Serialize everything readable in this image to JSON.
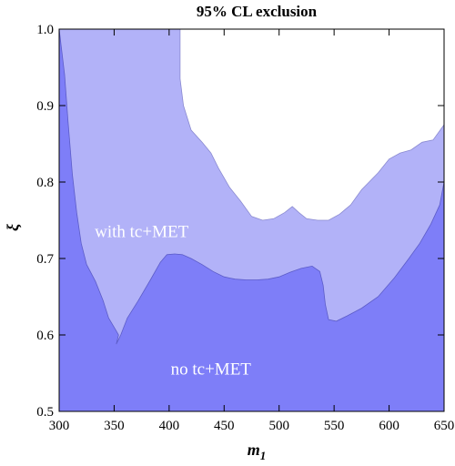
{
  "chart_data": {
    "type": "area",
    "title": "95% CL exclusion",
    "xlabel": "m",
    "xlabel_sub": "1",
    "ylabel": "ξ",
    "xlim": [
      300,
      650
    ],
    "ylim": [
      0.5,
      1.0
    ],
    "x_ticks": [
      300,
      350,
      400,
      450,
      500,
      550,
      600,
      650
    ],
    "y_ticks": [
      0.5,
      0.6,
      0.7,
      0.8,
      0.9,
      1.0
    ],
    "grid": false,
    "series": [
      {
        "name": "with tc+MET",
        "color": "#b2b2f8",
        "boundary": [
          [
            410,
            1.0
          ],
          [
            410,
            0.935
          ],
          [
            413,
            0.9
          ],
          [
            420,
            0.868
          ],
          [
            430,
            0.852
          ],
          [
            438,
            0.838
          ],
          [
            445,
            0.818
          ],
          [
            455,
            0.793
          ],
          [
            465,
            0.775
          ],
          [
            475,
            0.755
          ],
          [
            485,
            0.75
          ],
          [
            495,
            0.752
          ],
          [
            505,
            0.76
          ],
          [
            512,
            0.768
          ],
          [
            518,
            0.76
          ],
          [
            525,
            0.752
          ],
          [
            535,
            0.75
          ],
          [
            545,
            0.75
          ],
          [
            555,
            0.758
          ],
          [
            565,
            0.77
          ],
          [
            575,
            0.79
          ],
          [
            590,
            0.812
          ],
          [
            600,
            0.83
          ],
          [
            610,
            0.838
          ],
          [
            620,
            0.842
          ],
          [
            630,
            0.852
          ],
          [
            640,
            0.855
          ],
          [
            650,
            0.875
          ]
        ]
      },
      {
        "name": "no tc+MET",
        "color": "#7e7ef8",
        "boundary": [
          [
            300,
            1.0
          ],
          [
            305,
            0.94
          ],
          [
            308,
            0.88
          ],
          [
            312,
            0.81
          ],
          [
            316,
            0.76
          ],
          [
            320,
            0.72
          ],
          [
            325,
            0.692
          ],
          [
            333,
            0.67
          ],
          [
            340,
            0.645
          ],
          [
            345,
            0.622
          ],
          [
            350,
            0.61
          ],
          [
            354,
            0.6
          ],
          [
            352,
            0.588
          ],
          [
            356,
            0.6
          ],
          [
            362,
            0.622
          ],
          [
            372,
            0.645
          ],
          [
            383,
            0.672
          ],
          [
            392,
            0.695
          ],
          [
            398,
            0.705
          ],
          [
            405,
            0.706
          ],
          [
            412,
            0.705
          ],
          [
            420,
            0.7
          ],
          [
            430,
            0.692
          ],
          [
            440,
            0.683
          ],
          [
            450,
            0.676
          ],
          [
            460,
            0.673
          ],
          [
            470,
            0.672
          ],
          [
            480,
            0.672
          ],
          [
            490,
            0.673
          ],
          [
            500,
            0.676
          ],
          [
            510,
            0.682
          ],
          [
            520,
            0.687
          ],
          [
            530,
            0.69
          ],
          [
            537,
            0.683
          ],
          [
            540,
            0.665
          ],
          [
            542,
            0.64
          ],
          [
            545,
            0.62
          ],
          [
            552,
            0.618
          ],
          [
            562,
            0.625
          ],
          [
            575,
            0.635
          ],
          [
            590,
            0.65
          ],
          [
            605,
            0.675
          ],
          [
            618,
            0.7
          ],
          [
            628,
            0.72
          ],
          [
            638,
            0.745
          ],
          [
            646,
            0.77
          ],
          [
            650,
            0.8
          ]
        ]
      }
    ],
    "annotations": [
      {
        "text": "with tc+MET",
        "x": 375,
        "y": 0.728
      },
      {
        "text": "no tc+MET",
        "x": 438,
        "y": 0.548
      }
    ]
  }
}
